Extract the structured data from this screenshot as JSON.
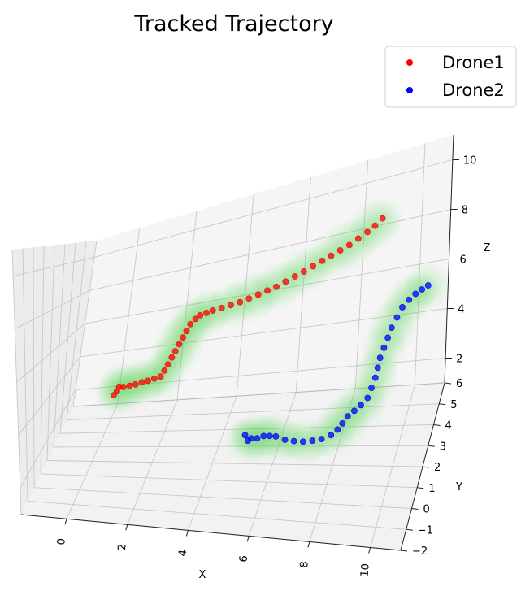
{
  "chart_data": {
    "type": "scatter",
    "projection": "3d",
    "title": "Tracked Trajectory",
    "xlabel": "X",
    "ylabel": "Y",
    "zlabel": "Z",
    "xlim": [
      -1.5,
      11
    ],
    "ylim": [
      -2,
      6
    ],
    "zlim": [
      1,
      11
    ],
    "x_ticks": [
      "0",
      "2",
      "4",
      "6",
      "8",
      "10"
    ],
    "y_ticks": [
      "−2",
      "−1",
      "0",
      "1",
      "2",
      "3",
      "4",
      "5",
      "6"
    ],
    "z_ticks": [
      "2",
      "4",
      "6",
      "8",
      "10"
    ],
    "grid": true,
    "legend": {
      "position": "top-right",
      "entries": [
        "Drone1",
        "Drone2"
      ]
    },
    "uncertainty_color": "#3fcf3f",
    "series": [
      {
        "name": "Drone1",
        "color": "#ff0000",
        "points": [
          [
            0.0,
            5.0,
            2.2
          ],
          [
            0.1,
            5.0,
            2.4
          ],
          [
            0.15,
            5.05,
            2.6
          ],
          [
            0.3,
            5.0,
            2.6
          ],
          [
            0.5,
            5.05,
            2.6
          ],
          [
            0.7,
            5.05,
            2.65
          ],
          [
            0.9,
            5.1,
            2.7
          ],
          [
            1.1,
            5.1,
            2.75
          ],
          [
            1.3,
            5.15,
            2.8
          ],
          [
            1.5,
            5.2,
            2.85
          ],
          [
            1.6,
            5.25,
            3.1
          ],
          [
            1.7,
            5.25,
            3.4
          ],
          [
            1.8,
            5.3,
            3.7
          ],
          [
            1.9,
            5.3,
            4.0
          ],
          [
            2.0,
            5.35,
            4.3
          ],
          [
            2.1,
            5.4,
            4.6
          ],
          [
            2.2,
            5.4,
            4.9
          ],
          [
            2.3,
            5.45,
            5.2
          ],
          [
            2.45,
            5.5,
            5.4
          ],
          [
            2.6,
            5.5,
            5.55
          ],
          [
            2.8,
            5.55,
            5.6
          ],
          [
            3.0,
            5.6,
            5.65
          ],
          [
            3.3,
            5.6,
            5.7
          ],
          [
            3.6,
            5.65,
            5.75
          ],
          [
            3.9,
            5.7,
            5.8
          ],
          [
            4.2,
            5.7,
            5.9
          ],
          [
            4.5,
            5.75,
            6.0
          ],
          [
            4.8,
            5.8,
            6.1
          ],
          [
            5.1,
            5.8,
            6.2
          ],
          [
            5.4,
            5.85,
            6.35
          ],
          [
            5.7,
            5.9,
            6.5
          ],
          [
            6.0,
            5.9,
            6.65
          ],
          [
            6.3,
            5.95,
            6.8
          ],
          [
            6.6,
            6.0,
            6.95
          ],
          [
            6.9,
            6.0,
            7.1
          ],
          [
            7.2,
            6.05,
            7.25
          ],
          [
            7.5,
            6.1,
            7.4
          ],
          [
            7.8,
            6.1,
            7.6
          ],
          [
            8.1,
            6.15,
            7.8
          ],
          [
            8.35,
            6.2,
            8.0
          ],
          [
            8.6,
            6.2,
            8.25
          ]
        ]
      },
      {
        "name": "Drone2",
        "color": "#0000ff",
        "points": [
          [
            5.0,
            2.2,
            1.9
          ],
          [
            5.1,
            2.2,
            1.7
          ],
          [
            5.2,
            2.25,
            1.75
          ],
          [
            5.4,
            2.25,
            1.75
          ],
          [
            5.6,
            2.3,
            1.8
          ],
          [
            5.8,
            2.3,
            1.8
          ],
          [
            6.0,
            2.35,
            1.75
          ],
          [
            6.3,
            2.4,
            1.6
          ],
          [
            6.6,
            2.4,
            1.55
          ],
          [
            6.9,
            2.45,
            1.5
          ],
          [
            7.2,
            2.5,
            1.5
          ],
          [
            7.5,
            2.5,
            1.55
          ],
          [
            7.8,
            2.55,
            1.65
          ],
          [
            8.0,
            2.6,
            1.8
          ],
          [
            8.15,
            2.6,
            2.0
          ],
          [
            8.3,
            2.65,
            2.2
          ],
          [
            8.5,
            2.7,
            2.35
          ],
          [
            8.7,
            2.75,
            2.5
          ],
          [
            8.9,
            2.8,
            2.7
          ],
          [
            9.0,
            2.85,
            3.0
          ],
          [
            9.1,
            2.9,
            3.3
          ],
          [
            9.15,
            2.95,
            3.6
          ],
          [
            9.2,
            3.0,
            3.9
          ],
          [
            9.3,
            3.05,
            4.2
          ],
          [
            9.4,
            3.1,
            4.5
          ],
          [
            9.5,
            3.15,
            4.8
          ],
          [
            9.65,
            3.2,
            5.1
          ],
          [
            9.8,
            3.25,
            5.4
          ],
          [
            10.0,
            3.3,
            5.6
          ],
          [
            10.2,
            3.35,
            5.75
          ],
          [
            10.4,
            3.4,
            5.85
          ],
          [
            10.6,
            3.4,
            5.95
          ]
        ]
      }
    ]
  }
}
